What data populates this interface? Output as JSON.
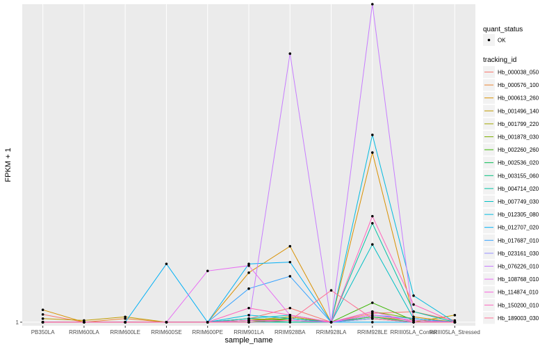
{
  "chart_data": {
    "type": "line",
    "xlabel": "sample_name",
    "ylabel": "FPKM + 1",
    "y_ticks": [
      1
    ],
    "y_tick_labels": [
      "1"
    ],
    "ylim": [
      0.9,
      10.0
    ],
    "grid": true,
    "legend_position": "right",
    "categories": [
      "PB350LA",
      "RRIM600LA",
      "RRIM600LE",
      "RRIM600SE",
      "RRIM600PE",
      "RRIM901LA",
      "RRIM928BA",
      "RRIM928LA",
      "RRIM928LE",
      "RRIII05LA_Control",
      "RRIII05LA_Stressed"
    ],
    "legend_groups": [
      {
        "title": "quant_status",
        "entries": [
          "OK"
        ]
      },
      {
        "title": "tracking_id"
      }
    ],
    "series": [
      {
        "name": "Hb_000038_050",
        "color": "#F8766D",
        "values": [
          1.22,
          1.0,
          1.0,
          1.0,
          1.0,
          1.1,
          1.4,
          1.0,
          1.25,
          1.3,
          1.05
        ]
      },
      {
        "name": "Hb_000576_100",
        "color": "#EA8331",
        "values": [
          1.0,
          1.0,
          1.1,
          1.0,
          1.0,
          1.05,
          1.15,
          1.0,
          1.15,
          1.05,
          1.0
        ]
      },
      {
        "name": "Hb_000613_260",
        "color": "#D89000",
        "values": [
          1.35,
          1.0,
          1.0,
          1.0,
          1.0,
          2.4,
          3.15,
          1.0,
          5.8,
          1.15,
          1.0
        ]
      },
      {
        "name": "Hb_001496_140",
        "color": "#C09B00",
        "values": [
          1.1,
          1.05,
          1.15,
          1.0,
          1.0,
          1.05,
          1.1,
          1.0,
          1.1,
          1.0,
          1.2
        ]
      },
      {
        "name": "Hb_001799_220",
        "color": "#A3A500",
        "values": [
          1.0,
          1.0,
          1.0,
          1.0,
          1.0,
          1.05,
          1.15,
          1.0,
          1.2,
          1.05,
          1.0
        ]
      },
      {
        "name": "Hb_001878_030",
        "color": "#7CAE00",
        "values": [
          1.0,
          1.0,
          1.0,
          1.0,
          1.0,
          1.1,
          1.05,
          1.0,
          1.3,
          1.1,
          1.0
        ]
      },
      {
        "name": "Hb_002260_260",
        "color": "#39B600",
        "values": [
          1.0,
          1.0,
          1.0,
          1.0,
          1.0,
          1.0,
          1.1,
          1.0,
          1.55,
          1.05,
          1.0
        ]
      },
      {
        "name": "Hb_002536_020",
        "color": "#00BB4E",
        "values": [
          1.0,
          1.0,
          1.0,
          1.0,
          1.0,
          1.05,
          1.0,
          1.0,
          1.15,
          1.0,
          1.0
        ]
      },
      {
        "name": "Hb_003155_060",
        "color": "#00BF7D",
        "values": [
          1.0,
          1.0,
          1.0,
          1.0,
          1.0,
          1.0,
          1.05,
          1.0,
          1.1,
          1.0,
          1.0
        ]
      },
      {
        "name": "Hb_004714_020",
        "color": "#00C1A3",
        "values": [
          1.0,
          1.0,
          1.0,
          1.0,
          1.0,
          1.0,
          1.0,
          1.0,
          3.8,
          1.3,
          1.0
        ]
      },
      {
        "name": "Hb_007749_030",
        "color": "#00BFC4",
        "values": [
          1.0,
          1.0,
          1.0,
          1.0,
          1.0,
          1.1,
          1.2,
          1.0,
          3.2,
          1.1,
          1.0
        ]
      },
      {
        "name": "Hb_012305_080",
        "color": "#00BAE0",
        "values": [
          1.0,
          1.0,
          1.0,
          1.0,
          1.0,
          1.2,
          1.1,
          1.0,
          6.3,
          1.75,
          1.0
        ]
      },
      {
        "name": "Hb_012707_020",
        "color": "#00B0F6",
        "values": [
          1.0,
          1.0,
          1.0,
          2.65,
          1.0,
          2.65,
          2.7,
          1.0,
          1.0,
          1.0,
          1.0
        ]
      },
      {
        "name": "Hb_017687_010",
        "color": "#35A2FF",
        "values": [
          1.0,
          1.0,
          1.0,
          1.0,
          1.0,
          1.95,
          2.3,
          1.0,
          1.2,
          1.1,
          1.0
        ]
      },
      {
        "name": "Hb_023161_030",
        "color": "#9590FF",
        "values": [
          1.0,
          1.0,
          1.0,
          1.0,
          1.0,
          1.0,
          1.05,
          1.0,
          1.1,
          1.0,
          1.0
        ]
      },
      {
        "name": "Hb_076226_010",
        "color": "#C77CFF",
        "values": [
          1.0,
          1.0,
          1.0,
          1.0,
          1.0,
          1.0,
          8.6,
          1.0,
          10.0,
          1.0,
          1.0
        ]
      },
      {
        "name": "Hb_108768_010",
        "color": "#E76BF3",
        "values": [
          1.0,
          1.0,
          1.0,
          1.0,
          2.45,
          2.6,
          1.2,
          1.0,
          1.2,
          1.05,
          1.0
        ]
      },
      {
        "name": "Hb_114874_010",
        "color": "#FA62DB",
        "values": [
          1.0,
          1.0,
          1.0,
          1.0,
          1.0,
          1.05,
          1.05,
          1.0,
          1.3,
          1.0,
          1.0
        ]
      },
      {
        "name": "Hb_150200_010",
        "color": "#FF62BC",
        "values": [
          1.0,
          1.0,
          1.0,
          1.0,
          1.0,
          1.4,
          1.2,
          1.0,
          4.0,
          1.5,
          1.0
        ]
      },
      {
        "name": "Hb_189003_030",
        "color": "#FF6C91",
        "values": [
          1.0,
          1.0,
          1.0,
          1.0,
          1.0,
          1.0,
          1.05,
          1.9,
          1.1,
          1.0,
          1.0
        ]
      }
    ]
  }
}
